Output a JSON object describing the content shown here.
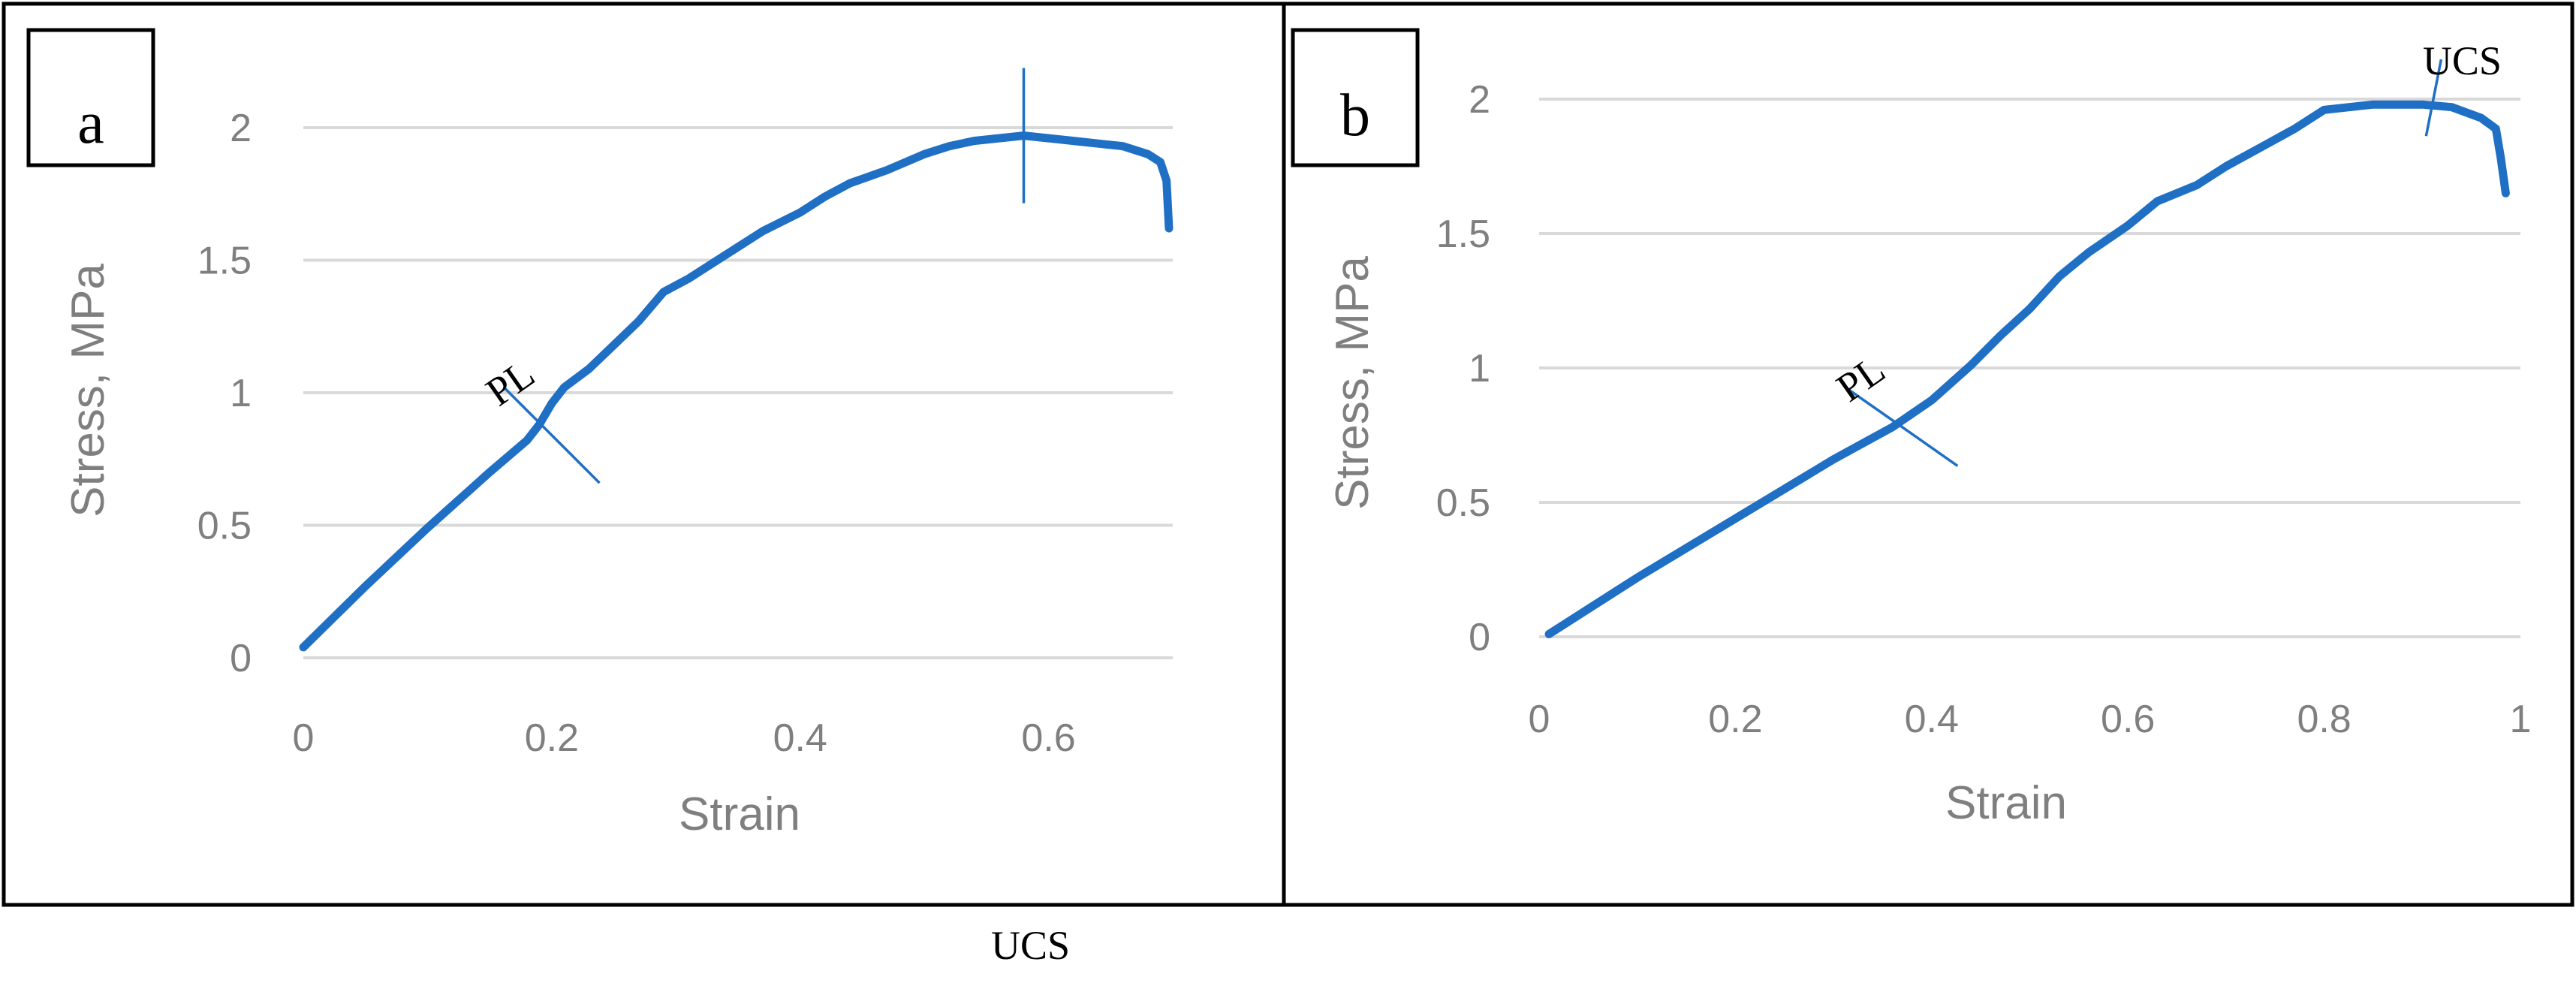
{
  "chart_data": [
    {
      "type": "line",
      "panel_label": "a",
      "xlabel": "Strain",
      "ylabel": "Stress, MPa",
      "xlim": [
        0,
        0.7
      ],
      "ylim": [
        0,
        2
      ],
      "xticks": [
        "0",
        "0.2",
        "0.4",
        "0.6"
      ],
      "yticks": [
        "0",
        "0.5",
        "1",
        "1.5",
        "2"
      ],
      "grid": true,
      "x": [
        0,
        0.05,
        0.1,
        0.15,
        0.18,
        0.19,
        0.2,
        0.21,
        0.23,
        0.25,
        0.27,
        0.29,
        0.31,
        0.33,
        0.35,
        0.37,
        0.4,
        0.42,
        0.44,
        0.47,
        0.5,
        0.52,
        0.54,
        0.56,
        0.58,
        0.6,
        0.62,
        0.64,
        0.66,
        0.68,
        0.69,
        0.695,
        0.697
      ],
      "y": [
        0.04,
        0.27,
        0.49,
        0.7,
        0.82,
        0.88,
        0.96,
        1.02,
        1.09,
        1.18,
        1.27,
        1.38,
        1.43,
        1.49,
        1.55,
        1.61,
        1.68,
        1.74,
        1.79,
        1.84,
        1.9,
        1.93,
        1.95,
        1.96,
        1.97,
        1.96,
        1.95,
        1.94,
        1.93,
        1.9,
        1.87,
        1.8,
        1.62
      ],
      "annotations": [
        {
          "text": "PL",
          "x": 0.2,
          "y": 0.84
        },
        {
          "text": "UCS",
          "x": 0.58,
          "y": 1.97
        }
      ]
    },
    {
      "type": "line",
      "panel_label": "b",
      "xlabel": "Strain",
      "ylabel": "Stress, MPa",
      "xlim": [
        0,
        1
      ],
      "ylim": [
        0,
        2
      ],
      "xticks": [
        "0",
        "0.2",
        "0.4",
        "0.6",
        "0.8",
        "1"
      ],
      "yticks": [
        "0",
        "0.5",
        "1",
        "1.5",
        "2"
      ],
      "grid": true,
      "x": [
        0.01,
        0.1,
        0.2,
        0.3,
        0.36,
        0.4,
        0.44,
        0.47,
        0.5,
        0.53,
        0.56,
        0.6,
        0.63,
        0.67,
        0.7,
        0.74,
        0.77,
        0.8,
        0.85,
        0.9,
        0.93,
        0.96,
        0.975,
        0.98,
        0.985
      ],
      "y": [
        0.01,
        0.22,
        0.44,
        0.66,
        0.78,
        0.88,
        1.01,
        1.12,
        1.22,
        1.34,
        1.43,
        1.53,
        1.62,
        1.68,
        1.75,
        1.83,
        1.89,
        1.96,
        1.98,
        1.98,
        1.97,
        1.93,
        1.89,
        1.78,
        1.65
      ],
      "annotations": [
        {
          "text": "PL",
          "x": 0.37,
          "y": 0.78
        },
        {
          "text": "UCS",
          "x": 0.91,
          "y": 1.98
        }
      ]
    }
  ],
  "footer_text": "UCS"
}
